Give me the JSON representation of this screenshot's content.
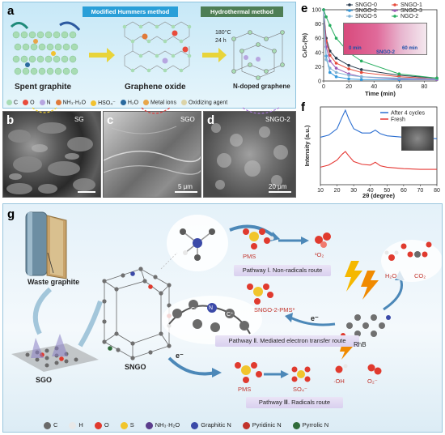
{
  "panel_a": {
    "letter": "a",
    "method_1": "Modified Hummers method",
    "method_2": "Hydrothermal method",
    "condition_temp": "180°C",
    "condition_time": "24 h",
    "label_spent": "Spent graphite",
    "label_go": "Graphene oxide",
    "label_ngraphene": "N-doped graphene",
    "legend": [
      {
        "label": "C",
        "color": "#a8dcb4"
      },
      {
        "label": "O",
        "color": "#e94b3c"
      },
      {
        "label": "N",
        "color": "#b7a6e0"
      },
      {
        "label": "NH₃·H₂O",
        "color": "#e07a3a"
      },
      {
        "label": "HSO₄⁻",
        "color": "#f2c230"
      },
      {
        "label": "H₂O",
        "color": "#2a6a9e"
      },
      {
        "label": "Metal ions",
        "color": "#e8a64a"
      },
      {
        "label": "Oxidizing agent",
        "color": "#dcd4a8"
      }
    ]
  },
  "panel_b": {
    "letter": "b",
    "label": "SG"
  },
  "panel_c": {
    "letter": "c",
    "label": "SGO",
    "scale": "5 μm"
  },
  "panel_d": {
    "letter": "d",
    "label": "SNGO-2",
    "scale": "20 μm"
  },
  "panel_e": {
    "letter": "e",
    "inset_start": "0 min",
    "inset_mid": "SNGO-2",
    "inset_end": "60 min"
  },
  "panel_f": {
    "letter": "f"
  },
  "panel_g": {
    "letter": "g",
    "label_waste": "Waste graphite",
    "label_sgo": "SGO",
    "label_sngo": "SNGO",
    "pms": "PMS",
    "pms_2": "PMS",
    "singlet_o2": "¹O₂",
    "pathway_1": "Pathway Ⅰ. Non-radicals route",
    "pathway_2": "Pathway Ⅱ. Mediated electron transfer route",
    "pathway_3": "Pathway Ⅲ. Radicals route",
    "complex": "SNGO-2-PMS*",
    "electron": "e⁻",
    "electron_2": "e⁻",
    "rhb": "RhB",
    "h2o": "H₂O",
    "co2": "CO₂",
    "so4": "SO₄⁻",
    "oh": "·OH",
    "o2": "O₂⁻",
    "c_plus": "C⁺",
    "c_plus_2": "C⁺",
    "n_atom": "N",
    "legend": [
      {
        "label": "C",
        "color": "#6a6a6a"
      },
      {
        "label": "H",
        "color": "#e8e8e8"
      },
      {
        "label": "O",
        "color": "#e03a2e"
      },
      {
        "label": "S",
        "color": "#f1c52c"
      },
      {
        "label": "NH₃·H₂O",
        "color": "#5b3d8c"
      },
      {
        "label": "Graphitic N",
        "color": "#3b4aa8"
      },
      {
        "label": "Pyridinic N",
        "color": "#c1332b"
      },
      {
        "label": "Pyrrolic N",
        "color": "#2f6b3a"
      }
    ]
  },
  "chart_data": [
    {
      "type": "line",
      "panel": "e",
      "xlabel": "Time (min)",
      "ylabel": "Cₜ/C₀(%)",
      "xlim": [
        0,
        90
      ],
      "ylim": [
        0,
        100
      ],
      "xticks": [
        0,
        20,
        40,
        60,
        80
      ],
      "yticks": [
        0,
        20,
        40,
        60,
        80,
        100
      ],
      "x": [
        0,
        2,
        5,
        10,
        20,
        30,
        60,
        90
      ],
      "series": [
        {
          "name": "SNGO-0",
          "color": "#2c3e50",
          "values": [
            100,
            60,
            42,
            32,
            22,
            16,
            8,
            4
          ]
        },
        {
          "name": "SNGO-1",
          "color": "#e74c3c",
          "values": [
            100,
            56,
            36,
            25,
            17,
            12,
            6,
            3
          ]
        },
        {
          "name": "SNGO-2",
          "color": "#3498db",
          "values": [
            100,
            35,
            12,
            6,
            3,
            2,
            2,
            2
          ]
        },
        {
          "name": "SNGO-3",
          "color": "#9b59b6",
          "values": [
            100,
            48,
            28,
            18,
            10,
            6,
            3,
            2
          ]
        },
        {
          "name": "SNGO-5",
          "color": "#7fb3d5",
          "values": [
            100,
            30,
            18,
            12,
            8,
            6,
            4,
            3
          ]
        },
        {
          "name": "NGO-2",
          "color": "#27ae60",
          "values": [
            100,
            90,
            78,
            60,
            40,
            28,
            10,
            4
          ]
        }
      ],
      "legend_position": "top-right"
    },
    {
      "type": "line",
      "panel": "f",
      "xlabel": "2θ (degree)",
      "ylabel": "Intensity (a.u.)",
      "xlim": [
        10,
        80
      ],
      "xticks": [
        10,
        20,
        30,
        40,
        50,
        60,
        70,
        80
      ],
      "series": [
        {
          "name": "After 4 cycles",
          "color": "#2c6fd1",
          "x": [
            10,
            15,
            20,
            23,
            25,
            27,
            30,
            35,
            40,
            43,
            46,
            50,
            60,
            70,
            80
          ],
          "values": [
            0.62,
            0.65,
            0.74,
            0.9,
            1.0,
            0.88,
            0.74,
            0.68,
            0.68,
            0.72,
            0.67,
            0.64,
            0.62,
            0.61,
            0.6
          ]
        },
        {
          "name": "Fresh",
          "color": "#e53935",
          "x": [
            10,
            15,
            20,
            23,
            25,
            27,
            30,
            35,
            40,
            43,
            46,
            50,
            60,
            70,
            80
          ],
          "values": [
            0.2,
            0.23,
            0.3,
            0.38,
            0.42,
            0.36,
            0.28,
            0.24,
            0.23,
            0.27,
            0.22,
            0.2,
            0.18,
            0.17,
            0.17
          ]
        }
      ],
      "legend_position": "top-right"
    }
  ]
}
